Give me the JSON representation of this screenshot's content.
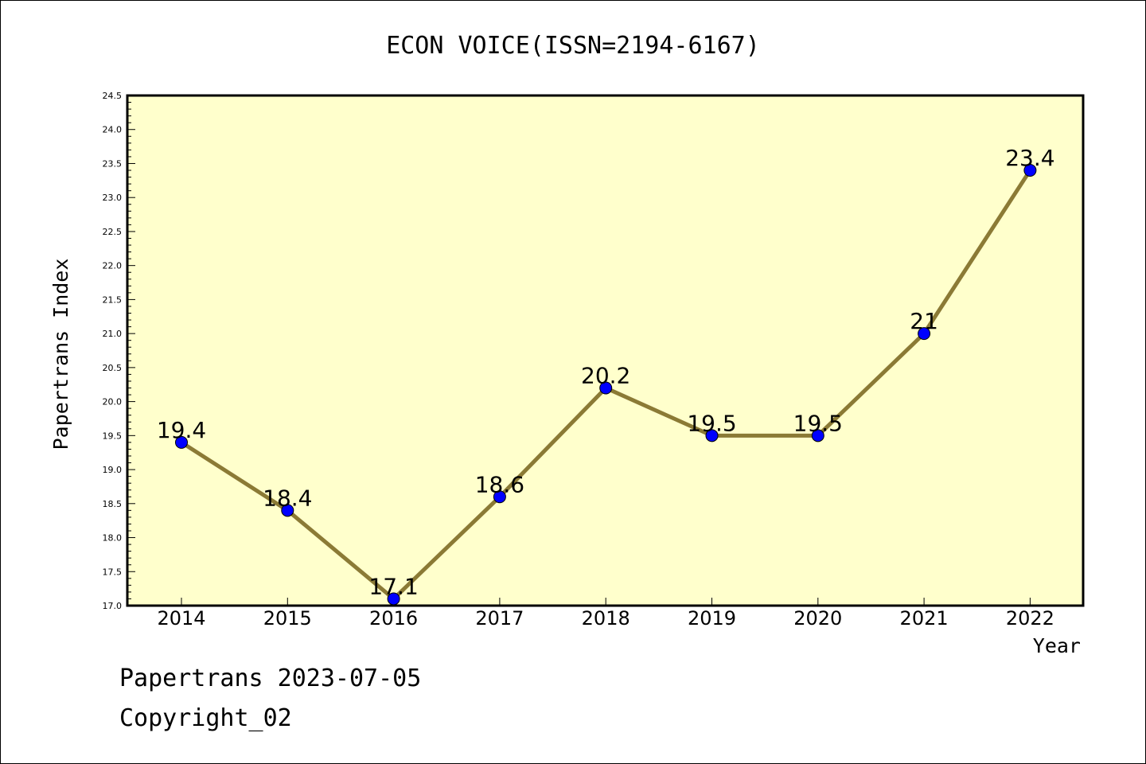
{
  "chart_data": {
    "type": "line",
    "title": "ECON VOICE(ISSN=2194-6167)",
    "xlabel": "Year",
    "ylabel": "Papertrans Index",
    "categories": [
      "2014",
      "2015",
      "2016",
      "2017",
      "2018",
      "2019",
      "2020",
      "2021",
      "2022"
    ],
    "series": [
      {
        "values": [
          19.4,
          18.4,
          17.1,
          18.6,
          20.2,
          19.5,
          19.5,
          21,
          23.4
        ],
        "labels": [
          "19.4",
          "18.4",
          "17.1",
          "18.6",
          "20.2",
          "19.5",
          "19.5",
          "21",
          "23.4"
        ]
      }
    ],
    "ylim": [
      17.0,
      24.5
    ],
    "yticks": [
      "17.0",
      "17.5",
      "18.0",
      "18.5",
      "19.0",
      "19.5",
      "20.0",
      "20.5",
      "21.0",
      "21.5",
      "22.0",
      "22.5",
      "23.0",
      "23.5",
      "24.0",
      "24.5"
    ],
    "grid": false,
    "colors": {
      "plot_background": "#ffffcc",
      "line": "#8b7a35",
      "marker": "#0000ff"
    }
  },
  "footer": {
    "date_line": "Papertrans 2023-07-05",
    "copyright": "Copyright_02"
  }
}
